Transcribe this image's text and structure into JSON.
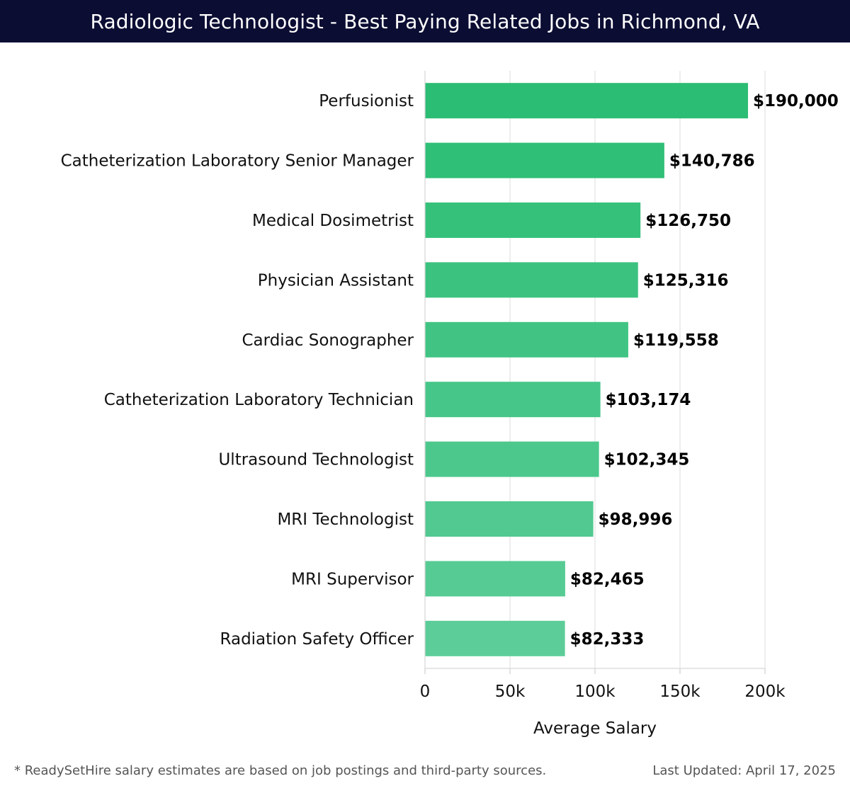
{
  "header": {
    "title": "Radiologic Technologist - Best Paying Related Jobs in Richmond, VA"
  },
  "footer": {
    "note": "* ReadySetHire salary estimates are based on job postings and third-party sources.",
    "updated": "Last Updated: April 17, 2025"
  },
  "colors": {
    "title_bar": "#0b0d33",
    "bar_top": "#2bbd73",
    "bar_bottom": "#5ccd98",
    "grid": "#e3e3e3"
  },
  "chart_data": {
    "type": "bar",
    "orientation": "horizontal",
    "categories": [
      "Perfusionist",
      "Catheterization Laboratory Senior Manager",
      "Medical Dosimetrist",
      "Physician Assistant",
      "Cardiac Sonographer",
      "Catheterization Laboratory Technician",
      "Ultrasound Technologist",
      "MRI Technologist",
      "MRI Supervisor",
      "Radiation Safety Officer"
    ],
    "values": [
      190000,
      140786,
      126750,
      125316,
      119558,
      103174,
      102345,
      98996,
      82465,
      82333
    ],
    "value_labels": [
      "$190,000",
      "$140,786",
      "$126,750",
      "$125,316",
      "$119,558",
      "$103,174",
      "$102,345",
      "$98,996",
      "$82,465",
      "$82,333"
    ],
    "xlabel": "Average Salary",
    "ylabel": "",
    "xlim": [
      0,
      200000
    ],
    "xticks": [
      0,
      50000,
      100000,
      150000,
      200000
    ],
    "xtick_labels": [
      "0",
      "50k",
      "100k",
      "150k",
      "200k"
    ],
    "grid": true,
    "legend": "none"
  }
}
